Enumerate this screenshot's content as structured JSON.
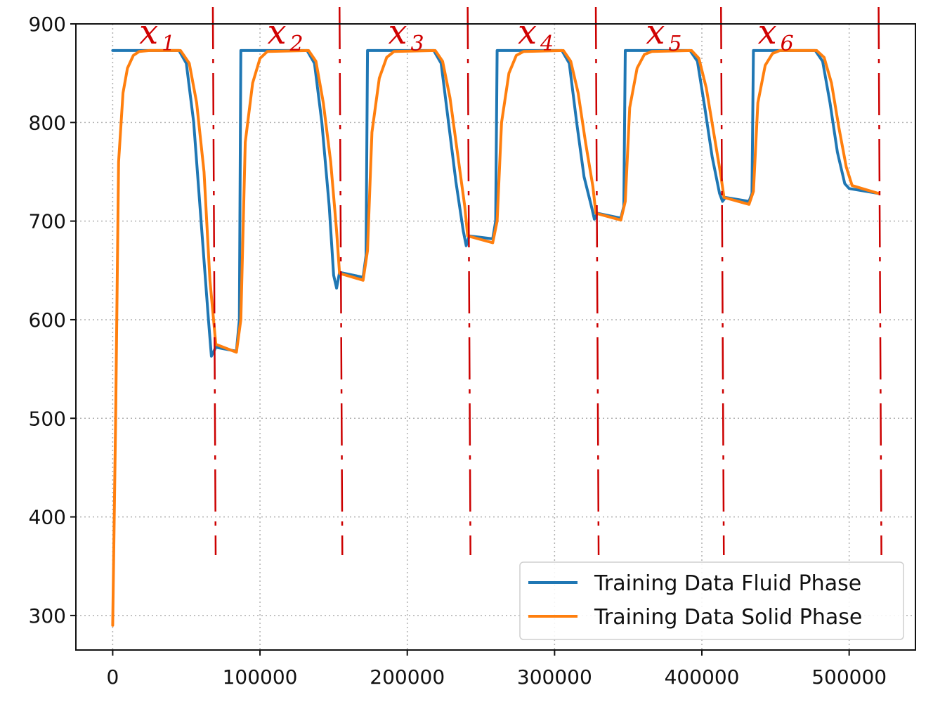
{
  "chart_data": {
    "type": "line",
    "title": "",
    "xlabel": "",
    "ylabel": "",
    "xlim": [
      -25000,
      545000
    ],
    "ylim": [
      265,
      900
    ],
    "xticks": [
      0,
      100000,
      200000,
      300000,
      400000,
      500000
    ],
    "yticks": [
      300,
      400,
      500,
      600,
      700,
      800,
      900
    ],
    "xtick_labels": [
      "0",
      "100000",
      "200000",
      "300000",
      "400000",
      "500000"
    ],
    "ytick_labels": [
      "300",
      "400",
      "500",
      "600",
      "700",
      "800",
      "900"
    ],
    "grid": true,
    "legend_position": "bottom-right",
    "series": [
      {
        "name": "Training Data Fluid Phase",
        "color": "#1f77b4",
        "x": [
          0,
          45000,
          50000,
          55000,
          60000,
          65000,
          67000,
          70000,
          84000,
          86000,
          87000,
          132000,
          137000,
          142000,
          147000,
          150000,
          152000,
          154000,
          170000,
          172000,
          173000,
          218000,
          223000,
          228000,
          233000,
          238000,
          240000,
          242000,
          258000,
          260000,
          261000,
          305000,
          310000,
          315000,
          320000,
          325000,
          327000,
          329000,
          345000,
          347000,
          348000,
          392000,
          397000,
          402000,
          407000,
          412000,
          414000,
          416000,
          432000,
          434000,
          435000,
          477000,
          482000,
          487000,
          492000,
          497000,
          500000,
          520000
        ],
        "y": [
          873,
          873,
          860,
          800,
          700,
          600,
          563,
          572,
          568,
          600,
          873,
          873,
          860,
          800,
          715,
          645,
          632,
          648,
          643,
          665,
          873,
          873,
          860,
          800,
          740,
          690,
          675,
          685,
          682,
          700,
          873,
          873,
          860,
          800,
          745,
          715,
          702,
          708,
          703,
          715,
          873,
          873,
          862,
          815,
          765,
          728,
          720,
          724,
          720,
          728,
          873,
          873,
          862,
          820,
          770,
          738,
          733,
          728
        ]
      },
      {
        "name": "Training Data Solid Phase",
        "color": "#ff7f0e",
        "x": [
          0,
          2000,
          4000,
          7000,
          10000,
          14000,
          18000,
          25000,
          46000,
          52000,
          57000,
          62000,
          66000,
          70000,
          84000,
          87000,
          90000,
          95000,
          100000,
          105000,
          133000,
          138000,
          143000,
          148000,
          152000,
          154000,
          170000,
          173000,
          176000,
          181000,
          186000,
          191000,
          219000,
          224000,
          229000,
          234000,
          239000,
          241000,
          258000,
          261000,
          264000,
          269000,
          274000,
          279000,
          306000,
          311000,
          316000,
          321000,
          326000,
          328000,
          345000,
          348000,
          351000,
          356000,
          361000,
          366000,
          393000,
          398000,
          403000,
          408000,
          413000,
          415000,
          432000,
          435000,
          438000,
          443000,
          448000,
          453000,
          478000,
          483000,
          488000,
          493000,
          498000,
          502000,
          520000
        ],
        "y": [
          290,
          500,
          760,
          830,
          855,
          868,
          872,
          873,
          873,
          860,
          820,
          750,
          640,
          575,
          567,
          600,
          780,
          840,
          865,
          872,
          873,
          862,
          820,
          760,
          690,
          647,
          640,
          670,
          790,
          845,
          866,
          872,
          873,
          862,
          825,
          770,
          715,
          685,
          678,
          700,
          800,
          850,
          868,
          872,
          873,
          862,
          830,
          780,
          735,
          708,
          701,
          720,
          815,
          855,
          869,
          872,
          873,
          865,
          835,
          790,
          745,
          724,
          717,
          730,
          820,
          858,
          870,
          873,
          873,
          866,
          840,
          795,
          755,
          736,
          728
        ]
      }
    ],
    "annotations": [
      {
        "base": "x",
        "sub": "1",
        "x": 18000
      },
      {
        "base": "x",
        "sub": "2",
        "x": 105000
      },
      {
        "base": "x",
        "sub": "3",
        "x": 187000
      },
      {
        "base": "x",
        "sub": "4",
        "x": 275000
      },
      {
        "base": "x",
        "sub": "5",
        "x": 362000
      },
      {
        "base": "x",
        "sub": "6",
        "x": 438000
      }
    ],
    "dividers": [
      68000,
      154000,
      241000,
      328000,
      413000,
      520000
    ]
  }
}
